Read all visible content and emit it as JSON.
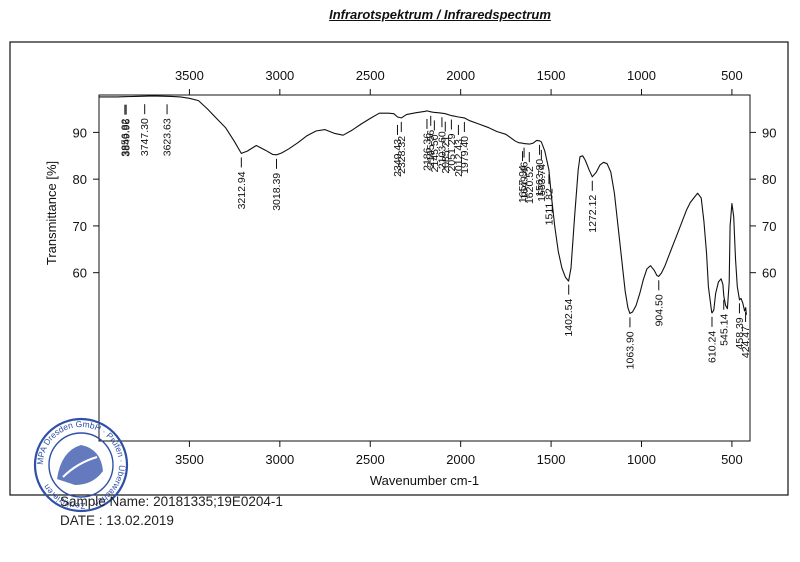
{
  "page": {
    "title": "Infrarotspektrum / Infraredspectrum",
    "sample_label": "Sample Name:",
    "sample_value": "20181335;19E0204-1",
    "date_label": "DATE :",
    "date_value": "13.02.2019"
  },
  "stamp": {
    "ring_text": "MPA Dresden GmbH · Prüfen · Überwachen · Zertifizieren"
  },
  "colors": {
    "line": "#111111",
    "stamp": "#2f4fa8"
  },
  "chart_data": {
    "type": "line",
    "title": "Infrarotspektrum / Infraredspectrum",
    "xlabel": "Wavenumber cm-1",
    "ylabel": "Transmittance [%]",
    "xlim": [
      4000,
      400
    ],
    "ylim": [
      24,
      98
    ],
    "xticks": [
      3500,
      3000,
      2500,
      2000,
      1500,
      1000,
      500
    ],
    "yticks": [
      60,
      70,
      80,
      90
    ],
    "series": [
      {
        "name": "Spectrum",
        "x": [
          4000,
          3900,
          3800,
          3700,
          3600,
          3550,
          3500,
          3450,
          3400,
          3350,
          3300,
          3250,
          3213,
          3180,
          3130,
          3080,
          3040,
          3018,
          2990,
          2950,
          2900,
          2850,
          2800,
          2750,
          2700,
          2650,
          2600,
          2550,
          2500,
          2450,
          2400,
          2370,
          2349,
          2340,
          2328,
          2300,
          2250,
          2200,
          2186,
          2165,
          2150,
          2120,
          2103,
          2085,
          2051,
          2012,
          1980,
          1950,
          1900,
          1850,
          1800,
          1750,
          1700,
          1680,
          1657,
          1649,
          1620,
          1600,
          1580,
          1564,
          1554,
          1535,
          1512,
          1500,
          1480,
          1460,
          1440,
          1420,
          1403,
          1390,
          1370,
          1350,
          1340,
          1325,
          1310,
          1290,
          1272,
          1250,
          1230,
          1210,
          1190,
          1170,
          1150,
          1130,
          1110,
          1090,
          1075,
          1064,
          1050,
          1030,
          1010,
          990,
          970,
          950,
          930,
          915,
          905,
          890,
          870,
          850,
          830,
          810,
          790,
          770,
          750,
          730,
          710,
          690,
          670,
          655,
          640,
          630,
          620,
          612,
          610,
          600,
          590,
          575,
          560,
          550,
          545,
          535,
          525,
          515,
          510,
          500,
          490,
          480,
          470,
          460,
          458,
          450,
          440,
          430,
          424,
          420
        ],
        "values": [
          97.6,
          97.6,
          97.7,
          97.8,
          97.7,
          97.6,
          97.3,
          96.8,
          95,
          93,
          91,
          88,
          85.5,
          86,
          87.2,
          86.2,
          85.3,
          85.2,
          85.6,
          86.5,
          87.8,
          89.3,
          90.3,
          90.6,
          89.8,
          89.4,
          90.5,
          91.8,
          93,
          94.1,
          94.1,
          94,
          93.3,
          93.2,
          93.1,
          93.8,
          94.2,
          94.5,
          94.6,
          94.4,
          94.3,
          94.2,
          94.1,
          94,
          93.6,
          93.3,
          93.1,
          92.5,
          91.8,
          91.1,
          90.2,
          89.6,
          88.2,
          87.8,
          87.7,
          87.6,
          87.5,
          87.7,
          88.3,
          88.2,
          88,
          86,
          82,
          77,
          70,
          64.5,
          61,
          59,
          58.2,
          61,
          72,
          82,
          84.8,
          85,
          84,
          82,
          80.5,
          81.5,
          83,
          83.6,
          83.3,
          81.5,
          77,
          70,
          63,
          56,
          52.5,
          51.3,
          51.6,
          53,
          55.5,
          58.5,
          60.8,
          61.5,
          60.5,
          59.4,
          59.2,
          59.9,
          61.5,
          63.5,
          65.5,
          67.5,
          69.5,
          71.5,
          73.5,
          75,
          76,
          77,
          76,
          71,
          64,
          57,
          54,
          51.5,
          51.4,
          52,
          55.5,
          58,
          58.7,
          57.5,
          55,
          53,
          52.3,
          58,
          70,
          74.8,
          72,
          63,
          57,
          54.7,
          54.2,
          54.5,
          53.5,
          51.8,
          52.5,
          51
        ]
      }
    ],
    "peak_labels_low": [
      "3212.94",
      "3018.39",
      "2328.32",
      "2165.56",
      "2103.60",
      "2051.29",
      "1979.40",
      "1649.46",
      "1563.80",
      "1511.82",
      "1402.54",
      "1272.12",
      "1063.90",
      "904.50",
      "610.24",
      "545.14",
      "458.39",
      "424.47"
    ],
    "peak_labels_high": [
      "3856.82",
      "3849.96",
      "3747.30",
      "3623.63",
      "2349.43",
      "2186.36",
      "2145.50",
      "2085.21",
      "2012.43",
      "1657.94",
      "1620.52",
      "1553.74"
    ]
  }
}
